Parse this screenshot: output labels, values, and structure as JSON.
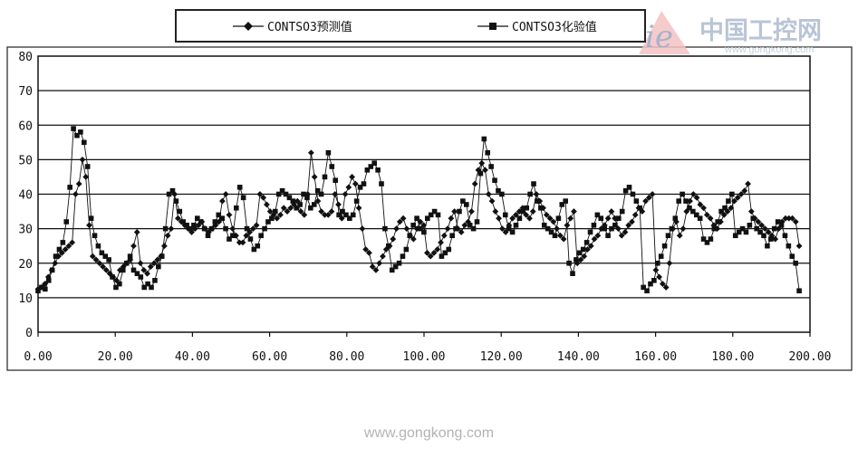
{
  "chart_data": {
    "type": "line",
    "title": "",
    "xlabel": "",
    "ylabel": "",
    "xlim": [
      0,
      200
    ],
    "ylim": [
      0,
      80
    ],
    "x_ticks": [
      "0.00",
      "20.00",
      "40.00",
      "60.00",
      "80.00",
      "100.00",
      "120.00",
      "140.00",
      "160.00",
      "180.00",
      "200.00"
    ],
    "y_ticks": [
      "0",
      "10",
      "20",
      "30",
      "40",
      "50",
      "60",
      "70",
      "80"
    ],
    "grid": "horizontal",
    "legend_position": "top",
    "series": [
      {
        "name": "CONTSO3预测值",
        "marker": "diamond",
        "color": "#111111",
        "values": [
          12.5,
          13,
          14,
          16,
          18,
          20,
          22,
          23,
          24,
          25,
          26,
          40,
          43,
          50,
          45,
          31,
          22,
          21,
          20,
          19,
          18,
          17,
          16,
          15,
          18,
          19,
          20,
          21,
          25,
          29,
          20,
          18,
          17,
          19,
          20,
          21,
          22,
          25,
          28,
          30,
          40,
          33,
          32,
          31,
          30,
          29,
          30,
          31,
          32,
          30,
          29,
          30,
          31,
          32,
          38,
          40,
          34,
          30,
          28,
          26,
          26,
          28,
          29,
          30,
          31,
          40,
          39,
          37,
          35,
          34,
          33,
          34,
          36,
          35,
          36,
          37,
          38,
          35,
          34,
          40,
          52,
          45,
          38,
          35,
          34,
          34,
          35,
          40,
          37,
          33,
          40,
          42,
          45,
          43,
          36,
          30,
          24,
          23,
          19,
          18,
          20,
          22,
          24,
          25,
          27,
          30,
          32,
          33,
          30,
          28,
          27,
          30,
          32,
          31,
          23,
          22,
          23,
          24,
          26,
          28,
          30,
          33,
          35,
          30,
          29,
          31,
          32,
          35,
          43,
          47,
          49,
          47,
          40,
          38,
          35,
          33,
          30,
          29,
          31,
          33,
          34,
          35,
          36,
          34,
          33,
          35,
          40,
          38,
          36,
          34,
          33,
          32,
          30,
          28,
          27,
          31,
          33,
          35,
          20,
          21,
          22,
          24,
          25,
          27,
          28,
          30,
          31,
          33,
          35,
          33,
          30,
          28,
          29,
          31,
          32,
          34,
          36,
          35,
          38,
          39,
          40,
          18,
          16,
          14,
          13,
          20,
          30,
          32,
          28,
          30,
          35,
          38,
          40,
          39,
          37,
          36,
          34,
          33,
          31,
          30,
          32,
          34,
          35,
          36,
          38,
          39,
          40,
          41,
          43,
          35,
          33,
          32,
          31,
          30,
          29,
          28,
          27,
          30,
          32,
          33,
          33,
          33,
          32,
          25
        ]
      },
      {
        "name": "CONTSO3化验值",
        "marker": "square",
        "color": "#111111",
        "values": [
          12,
          13,
          12.5,
          15,
          18,
          22,
          24,
          26,
          32,
          42,
          59,
          57,
          58,
          55,
          48,
          33,
          28,
          25,
          23,
          22,
          21,
          16,
          13,
          14,
          18,
          20,
          22,
          18,
          17,
          16,
          13,
          14,
          13,
          15,
          19,
          22,
          30,
          40,
          41,
          38,
          35,
          32,
          31,
          30,
          31,
          33,
          32,
          30,
          28,
          30,
          32,
          34,
          33,
          30,
          27,
          28,
          36,
          42,
          39,
          30,
          27,
          24,
          25,
          28,
          30,
          32,
          33,
          35,
          40,
          41,
          40,
          39,
          38,
          36,
          37,
          40,
          39,
          36,
          37,
          41,
          40,
          45,
          52,
          48,
          44,
          34,
          35,
          34,
          33,
          34,
          38,
          42,
          43,
          47,
          48,
          49,
          47,
          43,
          30,
          25,
          18,
          19,
          20,
          22,
          24,
          28,
          31,
          33,
          30,
          29,
          33,
          34,
          35,
          34,
          22,
          23,
          24,
          28,
          30,
          35,
          38,
          37,
          31,
          30,
          32,
          46,
          56,
          52,
          48,
          44,
          41,
          40,
          34,
          30,
          29,
          31,
          33,
          35,
          36,
          40,
          43,
          38,
          36,
          31,
          30,
          29,
          28,
          33,
          37,
          38,
          20,
          17,
          21,
          23,
          24,
          26,
          29,
          31,
          34,
          33,
          30,
          28,
          30,
          31,
          33,
          35,
          41,
          42,
          40,
          38,
          36,
          13,
          12,
          14,
          15,
          20,
          22,
          25,
          28,
          30,
          33,
          38,
          40,
          38,
          36,
          35,
          34,
          33,
          27,
          26,
          27,
          30,
          32,
          35,
          36,
          38,
          40,
          28,
          29,
          30,
          29,
          31,
          33,
          30,
          29,
          28,
          25,
          27,
          30,
          32,
          31,
          28,
          25,
          22,
          20,
          12
        ]
      }
    ]
  },
  "watermark": {
    "brand_cn": "中国工控网",
    "brand_url": "www.gongkong.com",
    "logo_letters": "ie"
  },
  "footer": {
    "url": "www.gongkong.com"
  }
}
